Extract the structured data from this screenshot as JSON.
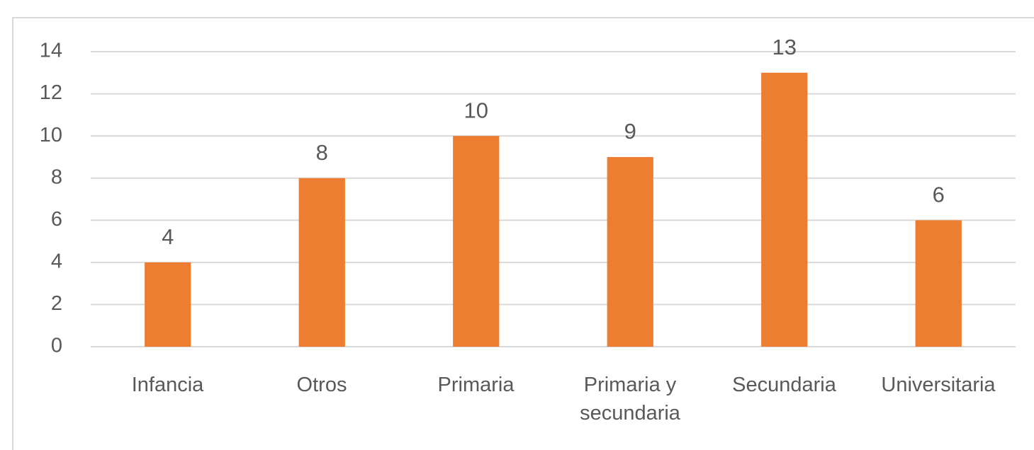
{
  "chart_data": {
    "type": "bar",
    "categories": [
      "Infancia",
      "Otros",
      "Primaria",
      "Primaria y secundaria",
      "Secundaria",
      "Universitaria"
    ],
    "values": [
      4,
      8,
      10,
      9,
      13,
      6
    ],
    "color": "#ed7d31",
    "ylim": [
      0,
      14
    ],
    "yticks": [
      0,
      2,
      4,
      6,
      8,
      10,
      12,
      14
    ],
    "grid": true
  }
}
